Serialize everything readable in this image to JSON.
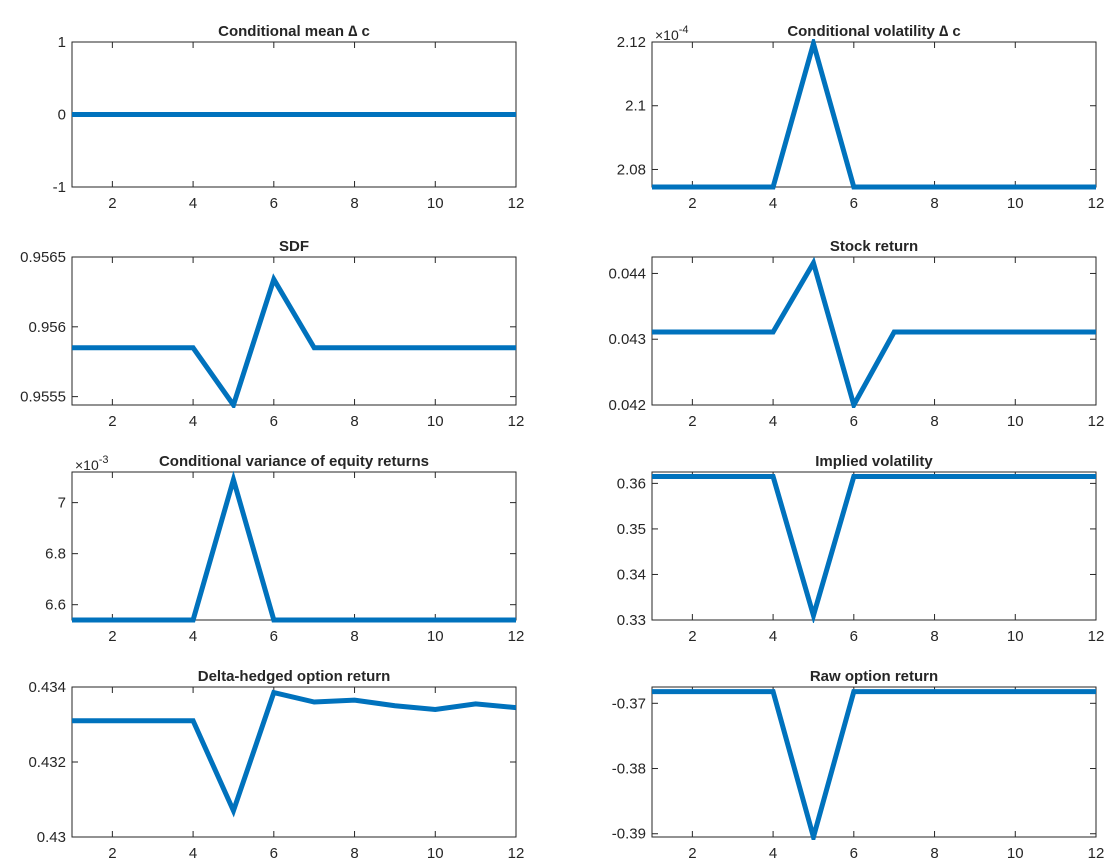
{
  "chart_data": [
    {
      "type": "line",
      "title": "Conditional mean ∆ c",
      "x": [
        1,
        2,
        3,
        4,
        5,
        6,
        7,
        8,
        9,
        10,
        11,
        12
      ],
      "series": [
        {
          "values": [
            0,
            0,
            0,
            0,
            0,
            0,
            0,
            0,
            0,
            0,
            0,
            0
          ]
        }
      ],
      "xlim": [
        1,
        12
      ],
      "ylim": [
        -1,
        1
      ],
      "xticks": [
        2,
        4,
        6,
        8,
        10,
        12
      ],
      "xtick_labels": [
        "2",
        "4",
        "6",
        "8",
        "10",
        "12"
      ],
      "yticks": [
        -1,
        0,
        1
      ],
      "ytick_labels": [
        "-1",
        "0",
        "1"
      ],
      "exponent_label": "",
      "grid": false
    },
    {
      "type": "line",
      "title": "Conditional volatility ∆ c",
      "x": [
        1,
        2,
        3,
        4,
        5,
        6,
        7,
        8,
        9,
        10,
        11,
        12
      ],
      "series": [
        {
          "values": [
            2.0745,
            2.0745,
            2.0745,
            2.0745,
            2.1195,
            2.0745,
            2.0745,
            2.0745,
            2.0745,
            2.0745,
            2.0745,
            2.0745
          ]
        }
      ],
      "xlim": [
        1,
        12
      ],
      "ylim": [
        2.0745,
        2.12
      ],
      "xticks": [
        2,
        4,
        6,
        8,
        10,
        12
      ],
      "xtick_labels": [
        "2",
        "4",
        "6",
        "8",
        "10",
        "12"
      ],
      "yticks": [
        2.08,
        2.1,
        2.12
      ],
      "ytick_labels": [
        "2.08",
        "2.1",
        "2.12"
      ],
      "exponent_label": "×10-4",
      "grid": false
    },
    {
      "type": "line",
      "title": "SDF",
      "x": [
        1,
        2,
        3,
        4,
        5,
        6,
        7,
        8,
        9,
        10,
        11,
        12
      ],
      "series": [
        {
          "values": [
            0.95585,
            0.95585,
            0.95585,
            0.95585,
            0.95544,
            0.95634,
            0.95585,
            0.95585,
            0.95585,
            0.95585,
            0.95585,
            0.95585
          ]
        }
      ],
      "xlim": [
        1,
        12
      ],
      "ylim": [
        0.95544,
        0.9565
      ],
      "xticks": [
        2,
        4,
        6,
        8,
        10,
        12
      ],
      "xtick_labels": [
        "2",
        "4",
        "6",
        "8",
        "10",
        "12"
      ],
      "yticks": [
        0.9555,
        0.956,
        0.9565
      ],
      "ytick_labels": [
        "0.9555",
        "0.956",
        "0.9565"
      ],
      "exponent_label": "",
      "grid": false
    },
    {
      "type": "line",
      "title": "Stock return",
      "x": [
        1,
        2,
        3,
        4,
        5,
        6,
        7,
        8,
        9,
        10,
        11,
        12
      ],
      "series": [
        {
          "values": [
            0.04311,
            0.04311,
            0.04311,
            0.04311,
            0.04416,
            0.042,
            0.04311,
            0.04311,
            0.04311,
            0.04311,
            0.04311,
            0.04311
          ]
        }
      ],
      "xlim": [
        1,
        12
      ],
      "ylim": [
        0.042,
        0.04425
      ],
      "xticks": [
        2,
        4,
        6,
        8,
        10,
        12
      ],
      "xtick_labels": [
        "2",
        "4",
        "6",
        "8",
        "10",
        "12"
      ],
      "yticks": [
        0.042,
        0.043,
        0.044
      ],
      "ytick_labels": [
        "0.042",
        "0.043",
        "0.044"
      ],
      "exponent_label": "",
      "grid": false
    },
    {
      "type": "line",
      "title": "Conditional variance of equity returns",
      "x": [
        1,
        2,
        3,
        4,
        5,
        6,
        7,
        8,
        9,
        10,
        11,
        12
      ],
      "series": [
        {
          "values": [
            6.54,
            6.54,
            6.54,
            6.54,
            7.09,
            6.54,
            6.54,
            6.54,
            6.54,
            6.54,
            6.54,
            6.54
          ]
        }
      ],
      "xlim": [
        1,
        12
      ],
      "ylim": [
        6.54,
        7.12
      ],
      "xticks": [
        2,
        4,
        6,
        8,
        10,
        12
      ],
      "xtick_labels": [
        "2",
        "4",
        "6",
        "8",
        "10",
        "12"
      ],
      "yticks": [
        6.6,
        6.8,
        7.0
      ],
      "ytick_labels": [
        "6.6",
        "6.8",
        "7"
      ],
      "exponent_label": "×10-3",
      "grid": false
    },
    {
      "type": "line",
      "title": "Implied volatility",
      "x": [
        1,
        2,
        3,
        4,
        5,
        6,
        7,
        8,
        9,
        10,
        11,
        12
      ],
      "series": [
        {
          "values": [
            0.3615,
            0.3615,
            0.3615,
            0.3615,
            0.331,
            0.3615,
            0.3615,
            0.3615,
            0.3615,
            0.3615,
            0.3615,
            0.3615
          ]
        }
      ],
      "xlim": [
        1,
        12
      ],
      "ylim": [
        0.33,
        0.3625
      ],
      "xticks": [
        2,
        4,
        6,
        8,
        10,
        12
      ],
      "xtick_labels": [
        "2",
        "4",
        "6",
        "8",
        "10",
        "12"
      ],
      "yticks": [
        0.33,
        0.34,
        0.35,
        0.36
      ],
      "ytick_labels": [
        "0.33",
        "0.34",
        "0.35",
        "0.36"
      ],
      "exponent_label": "",
      "grid": false
    },
    {
      "type": "line",
      "title": "Delta-hedged option return",
      "x": [
        1,
        2,
        3,
        4,
        5,
        6,
        7,
        8,
        9,
        10,
        11,
        12
      ],
      "series": [
        {
          "values": [
            0.4331,
            0.4331,
            0.4331,
            0.4331,
            0.4307,
            0.43385,
            0.4336,
            0.43365,
            0.4335,
            0.4334,
            0.43355,
            0.43345
          ]
        }
      ],
      "xlim": [
        1,
        12
      ],
      "ylim": [
        0.43,
        0.434
      ],
      "xticks": [
        2,
        4,
        6,
        8,
        10,
        12
      ],
      "xtick_labels": [
        "2",
        "4",
        "6",
        "8",
        "10",
        "12"
      ],
      "yticks": [
        0.43,
        0.432,
        0.434
      ],
      "ytick_labels": [
        "0.43",
        "0.432",
        "0.434"
      ],
      "exponent_label": "",
      "grid": false
    },
    {
      "type": "line",
      "title": "Raw option return",
      "x": [
        1,
        2,
        3,
        4,
        5,
        6,
        7,
        8,
        9,
        10,
        11,
        12
      ],
      "series": [
        {
          "values": [
            -0.3682,
            -0.3682,
            -0.3682,
            -0.3682,
            -0.3905,
            -0.3682,
            -0.3682,
            -0.3682,
            -0.3682,
            -0.3682,
            -0.3682,
            -0.3682
          ]
        }
      ],
      "xlim": [
        1,
        12
      ],
      "ylim": [
        -0.3905,
        -0.3675
      ],
      "xticks": [
        2,
        4,
        6,
        8,
        10,
        12
      ],
      "xtick_labels": [
        "2",
        "4",
        "6",
        "8",
        "10",
        "12"
      ],
      "yticks": [
        -0.39,
        -0.38,
        -0.37
      ],
      "ytick_labels": [
        "-0.39",
        "-0.38",
        "-0.37"
      ],
      "exponent_label": "",
      "grid": false
    }
  ],
  "colors": {
    "line": "#0072BD",
    "axes": "#262626",
    "background": "#ffffff"
  }
}
